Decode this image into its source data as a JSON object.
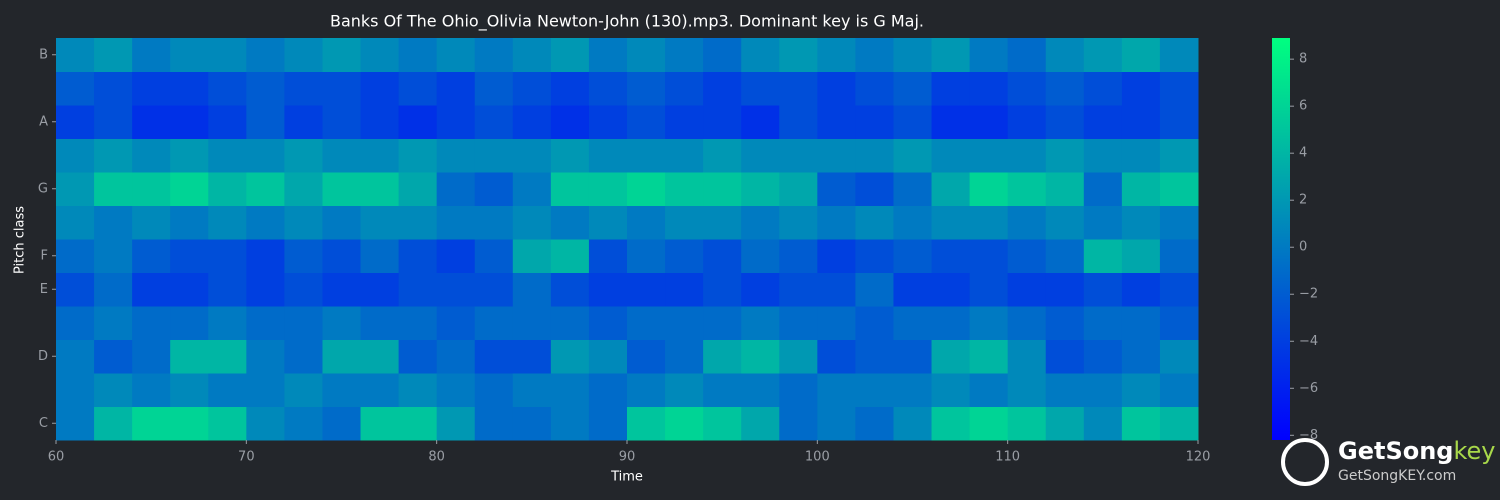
{
  "chart_data": {
    "type": "heatmap",
    "title": "Banks Of The Ohio_Olivia Newton-John (130).mp3. Dominant key is G Maj.",
    "xlabel": "Time",
    "ylabel": "Pitch class",
    "x": [
      61,
      63,
      65,
      67,
      69,
      71,
      73,
      75,
      77,
      79,
      81,
      83,
      85,
      87,
      89,
      91,
      93,
      95,
      97,
      99,
      101,
      103,
      105,
      107,
      109,
      111,
      113,
      115,
      117,
      119
    ],
    "categories": [
      "C",
      null,
      "D",
      null,
      "E",
      "F",
      null,
      "G",
      null,
      "A",
      null,
      "B"
    ],
    "values": [
      [
        0,
        4,
        6,
        6,
        5,
        1,
        0,
        -1,
        5,
        5,
        2,
        -1,
        -1,
        0,
        -1,
        5,
        6,
        5,
        3,
        -1,
        0,
        -1,
        1,
        5,
        6,
        5,
        3,
        1,
        5,
        4
      ],
      [
        0,
        1,
        0,
        1,
        0,
        0,
        1,
        0,
        0,
        1,
        0,
        -1,
        0,
        0,
        -1,
        0,
        1,
        0,
        0,
        -1,
        0,
        0,
        0,
        1,
        0,
        1,
        0,
        0,
        1,
        0
      ],
      [
        0,
        -2,
        -1,
        4,
        4,
        0,
        -1,
        3,
        3,
        -2,
        -1,
        -3,
        -3,
        2,
        1,
        -2,
        -1,
        3,
        4,
        2,
        -3,
        -2,
        -2,
        3,
        4,
        1,
        -3,
        -2,
        -1,
        1
      ],
      [
        -1,
        0,
        -1,
        -1,
        0,
        -1,
        -1,
        0,
        -1,
        -1,
        -2,
        -1,
        -1,
        -1,
        -2,
        -1,
        -1,
        -1,
        0,
        -1,
        -1,
        -2,
        -1,
        -1,
        0,
        -1,
        -2,
        -1,
        -1,
        -2
      ],
      [
        -3,
        -1,
        -4,
        -4,
        -3,
        -4,
        -3,
        -4,
        -4,
        -3,
        -3,
        -3,
        -1,
        -3,
        -4,
        -4,
        -4,
        -3,
        -4,
        -3,
        -3,
        -1,
        -4,
        -4,
        -3,
        -4,
        -4,
        -3,
        -4,
        -3
      ],
      [
        -1,
        0,
        -2,
        -3,
        -3,
        -4,
        -2,
        -3,
        -1,
        -3,
        -4,
        -2,
        3,
        4,
        -3,
        -1,
        -2,
        -3,
        -1,
        -2,
        -4,
        -3,
        -2,
        -3,
        -3,
        -2,
        -1,
        4,
        3,
        -1
      ],
      [
        1,
        0,
        1,
        0,
        1,
        0,
        1,
        0,
        1,
        1,
        0,
        0,
        1,
        0,
        1,
        0,
        1,
        1,
        0,
        1,
        0,
        1,
        0,
        1,
        1,
        0,
        1,
        0,
        1,
        0
      ],
      [
        2,
        5,
        5,
        6,
        4,
        5,
        3,
        5,
        5,
        3,
        -1,
        -2,
        0,
        5,
        5,
        6,
        5,
        5,
        4,
        3,
        -2,
        -3,
        -1,
        3,
        6,
        5,
        4,
        -1,
        4,
        5
      ],
      [
        1,
        2,
        1,
        2,
        1,
        1,
        2,
        1,
        1,
        2,
        1,
        1,
        1,
        2,
        1,
        1,
        1,
        2,
        1,
        1,
        1,
        1,
        2,
        1,
        1,
        1,
        2,
        1,
        1,
        2
      ],
      [
        -4,
        -3,
        -5,
        -5,
        -4,
        -2,
        -4,
        -3,
        -4,
        -5,
        -4,
        -3,
        -4,
        -5,
        -4,
        -3,
        -4,
        -4,
        -5,
        -3,
        -4,
        -4,
        -3,
        -5,
        -5,
        -4,
        -3,
        -4,
        -4,
        -3
      ],
      [
        -2,
        -3,
        -4,
        -4,
        -3,
        -2,
        -3,
        -3,
        -4,
        -3,
        -4,
        -2,
        -3,
        -4,
        -3,
        -2,
        -3,
        -4,
        -3,
        -3,
        -4,
        -3,
        -2,
        -4,
        -4,
        -3,
        -2,
        -3,
        -4,
        -3
      ],
      [
        1,
        2,
        0,
        1,
        1,
        0,
        1,
        2,
        1,
        0,
        1,
        0,
        1,
        2,
        0,
        1,
        0,
        -1,
        1,
        2,
        1,
        0,
        1,
        2,
        0,
        -1,
        1,
        2,
        3,
        1
      ]
    ],
    "xlim": [
      60,
      120
    ],
    "xticks": [
      60,
      70,
      80,
      90,
      100,
      110,
      120
    ],
    "colormap": "winter",
    "zlim": [
      -8.2,
      8.9
    ],
    "zticks": [
      {
        "value": -8,
        "label": "−8"
      },
      {
        "value": -6,
        "label": "−6"
      },
      {
        "value": -4,
        "label": "−4"
      },
      {
        "value": -2,
        "label": "−2"
      },
      0,
      2,
      4,
      6,
      8
    ]
  },
  "watermark": {
    "brand": "GetSong",
    "brand_accent": "key",
    "url": "GetSongKEY.com"
  }
}
